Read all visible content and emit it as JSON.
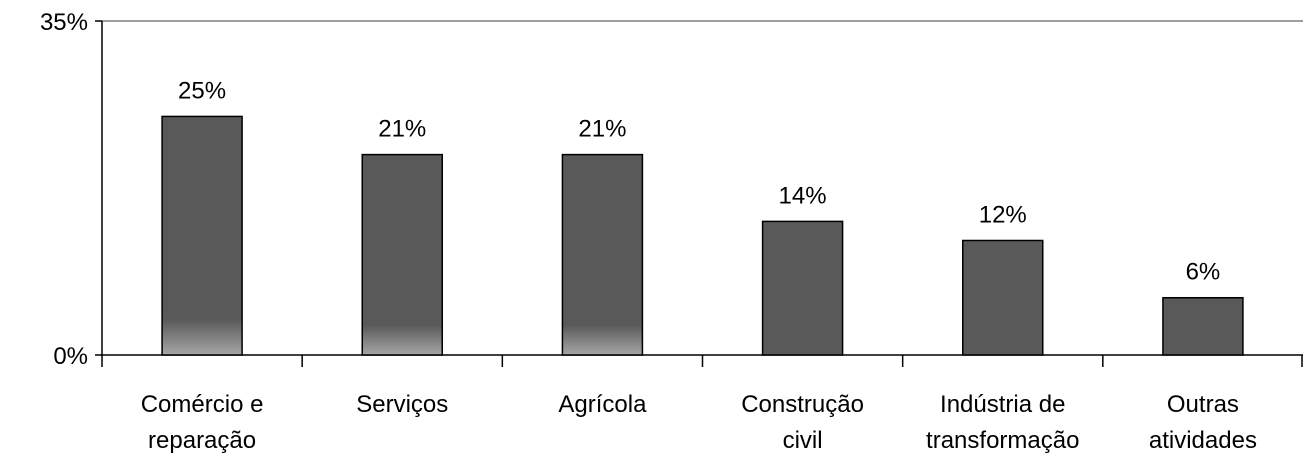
{
  "chart_data": {
    "type": "bar",
    "categories": [
      [
        "Comércio e",
        "reparação"
      ],
      [
        "Serviços"
      ],
      [
        "Agrícola"
      ],
      [
        "Construção",
        "civil"
      ],
      [
        "Indústria de",
        "transformação"
      ],
      [
        "Outras",
        "atividades"
      ]
    ],
    "values": [
      25,
      21,
      21,
      14,
      12,
      6
    ],
    "value_labels": [
      "25%",
      "21%",
      "21%",
      "14%",
      "12%",
      "6%"
    ],
    "ylim": [
      0,
      35
    ],
    "y_tick_labels": [
      "0%",
      "35%"
    ],
    "grid": false,
    "legend": "none",
    "title": "",
    "xlabel": "",
    "ylabel": "",
    "colors": {
      "bar": "#595959",
      "bar_bottom": "#a6a6a6",
      "axis": "#000000",
      "top_line": "#7f7f7f"
    }
  }
}
